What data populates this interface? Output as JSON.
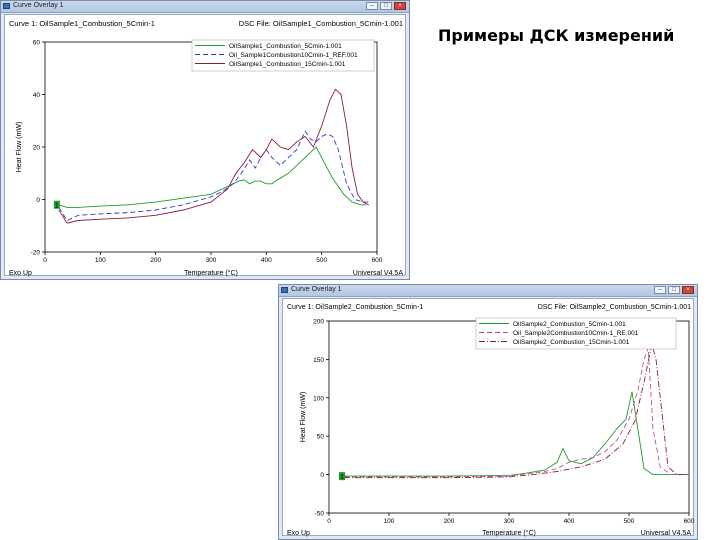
{
  "slide": {
    "title": "Примеры ДСК измерений"
  },
  "windows": [
    {
      "title": "Curve Overlay 1"
    },
    {
      "title": "Curve Overlay 1"
    }
  ],
  "chart_data": [
    {
      "type": "line",
      "header_left": "Curve 1: OilSample1_Combustion_5Cmin-1",
      "header_right": "DSC File: OilSample1_Combustion_5Cmin-1.001",
      "xlabel": "Temperature (°C)",
      "ylabel": "Heat Flow (mW)",
      "corner_left": "Exo Up",
      "corner_right": "Universal V4.5A",
      "marker_label": "1",
      "xlim": [
        0,
        600
      ],
      "ylim": [
        -20,
        60
      ],
      "xticks": [
        0,
        100,
        200,
        300,
        400,
        500,
        600
      ],
      "yticks": [
        -20,
        0,
        20,
        40,
        60
      ],
      "legend_position": "top-right",
      "series": [
        {
          "name": "OilSample1_Combustion_5Cmin-1.001",
          "color": "#1f9a2e",
          "dash": "solid",
          "points": [
            [
              25,
              -2
            ],
            [
              40,
              -3
            ],
            [
              60,
              -3
            ],
            [
              100,
              -2.5
            ],
            [
              150,
              -2
            ],
            [
              200,
              -1
            ],
            [
              250,
              0.5
            ],
            [
              300,
              2
            ],
            [
              320,
              4
            ],
            [
              340,
              6
            ],
            [
              350,
              7
            ],
            [
              360,
              7.5
            ],
            [
              370,
              6
            ],
            [
              380,
              7
            ],
            [
              390,
              7
            ],
            [
              400,
              6
            ],
            [
              410,
              6
            ],
            [
              420,
              7.5
            ],
            [
              440,
              10
            ],
            [
              460,
              14
            ],
            [
              475,
              17
            ],
            [
              490,
              20
            ],
            [
              505,
              14
            ],
            [
              520,
              8
            ],
            [
              540,
              2
            ],
            [
              555,
              -1
            ],
            [
              570,
              -2
            ],
            [
              580,
              -2
            ]
          ]
        },
        {
          "name": "Oil_Sample1Combustion10Cmin-1_REF.001",
          "color": "#2a3ad0",
          "dash": "5,3",
          "points": [
            [
              25,
              -3
            ],
            [
              40,
              -8
            ],
            [
              60,
              -6
            ],
            [
              100,
              -5.5
            ],
            [
              150,
              -5
            ],
            [
              200,
              -4
            ],
            [
              250,
              -2
            ],
            [
              300,
              1
            ],
            [
              320,
              3
            ],
            [
              340,
              6
            ],
            [
              355,
              10
            ],
            [
              370,
              15
            ],
            [
              380,
              12
            ],
            [
              390,
              16
            ],
            [
              400,
              19
            ],
            [
              410,
              16
            ],
            [
              425,
              13
            ],
            [
              440,
              16
            ],
            [
              455,
              19
            ],
            [
              470,
              26
            ],
            [
              480,
              23
            ],
            [
              490,
              22
            ],
            [
              500,
              24
            ],
            [
              510,
              25
            ],
            [
              520,
              24
            ],
            [
              530,
              19
            ],
            [
              545,
              6
            ],
            [
              560,
              0
            ],
            [
              575,
              -1
            ],
            [
              585,
              -1
            ]
          ]
        },
        {
          "name": "OilSample1_Combustion_15Cmin-1.001",
          "color": "#8a1f3a",
          "dash": "solid",
          "points": [
            [
              25,
              -4
            ],
            [
              40,
              -9
            ],
            [
              60,
              -8
            ],
            [
              100,
              -7.5
            ],
            [
              150,
              -7
            ],
            [
              200,
              -6
            ],
            [
              250,
              -4
            ],
            [
              300,
              -1
            ],
            [
              330,
              4
            ],
            [
              345,
              10
            ],
            [
              360,
              14
            ],
            [
              375,
              19
            ],
            [
              390,
              16
            ],
            [
              400,
              19
            ],
            [
              410,
              23
            ],
            [
              425,
              20
            ],
            [
              440,
              19
            ],
            [
              455,
              22
            ],
            [
              470,
              24
            ],
            [
              485,
              20
            ],
            [
              500,
              28
            ],
            [
              515,
              38
            ],
            [
              525,
              42
            ],
            [
              535,
              40
            ],
            [
              545,
              28
            ],
            [
              555,
              12
            ],
            [
              565,
              2
            ],
            [
              575,
              -1
            ],
            [
              585,
              -2
            ]
          ]
        }
      ]
    },
    {
      "type": "line",
      "header_left": "Curve 1: OilSample2_Combustion_5Cmin-1",
      "header_right": "DSC File: OilSample2_Combustion_5Cmin-1.001",
      "xlabel": "Temperature (°C)",
      "ylabel": "Heat Flow (mW)",
      "corner_left": "Exo Up",
      "corner_right": "Universal V4.5A",
      "marker_label": "1",
      "xlim": [
        0,
        600
      ],
      "ylim": [
        -50,
        200
      ],
      "xticks": [
        0,
        100,
        200,
        300,
        400,
        500,
        600
      ],
      "yticks": [
        -50,
        0,
        50,
        100,
        150,
        200
      ],
      "legend_position": "top-right",
      "series": [
        {
          "name": "OilSample2_Combustion_5Cmin-1.001",
          "color": "#1f9a2e",
          "dash": "solid",
          "points": [
            [
              25,
              -2
            ],
            [
              100,
              -2
            ],
            [
              200,
              -2
            ],
            [
              300,
              -1
            ],
            [
              330,
              2
            ],
            [
              360,
              6
            ],
            [
              380,
              16
            ],
            [
              390,
              34
            ],
            [
              400,
              18
            ],
            [
              420,
              14
            ],
            [
              440,
              22
            ],
            [
              460,
              40
            ],
            [
              480,
              60
            ],
            [
              495,
              72
            ],
            [
              505,
              108
            ],
            [
              515,
              58
            ],
            [
              525,
              8
            ],
            [
              540,
              0
            ],
            [
              560,
              0
            ],
            [
              600,
              0
            ]
          ]
        },
        {
          "name": "Oil_Sample2Combustion10Cmin-1_RE.001",
          "color": "#c0509a",
          "dash": "5,3",
          "points": [
            [
              25,
              -3
            ],
            [
              100,
              -3
            ],
            [
              200,
              -3
            ],
            [
              300,
              -2
            ],
            [
              330,
              1
            ],
            [
              360,
              4
            ],
            [
              380,
              8
            ],
            [
              400,
              16
            ],
            [
              420,
              20
            ],
            [
              440,
              22
            ],
            [
              460,
              30
            ],
            [
              480,
              45
            ],
            [
              500,
              72
            ],
            [
              515,
              110
            ],
            [
              525,
              150
            ],
            [
              532,
              165
            ],
            [
              540,
              60
            ],
            [
              552,
              10
            ],
            [
              570,
              0
            ],
            [
              600,
              0
            ]
          ]
        },
        {
          "name": "OilSample2_Combustion_15Cmin-1.001",
          "color": "#8a1f3a",
          "dash": "dash-dot",
          "points": [
            [
              25,
              -4
            ],
            [
              100,
              -4
            ],
            [
              200,
              -4
            ],
            [
              300,
              -3
            ],
            [
              340,
              0
            ],
            [
              380,
              4
            ],
            [
              420,
              10
            ],
            [
              460,
              20
            ],
            [
              490,
              40
            ],
            [
              510,
              70
            ],
            [
              525,
              120
            ],
            [
              538,
              170
            ],
            [
              545,
              150
            ],
            [
              555,
              80
            ],
            [
              565,
              10
            ],
            [
              580,
              0
            ],
            [
              600,
              0
            ]
          ]
        }
      ]
    }
  ]
}
